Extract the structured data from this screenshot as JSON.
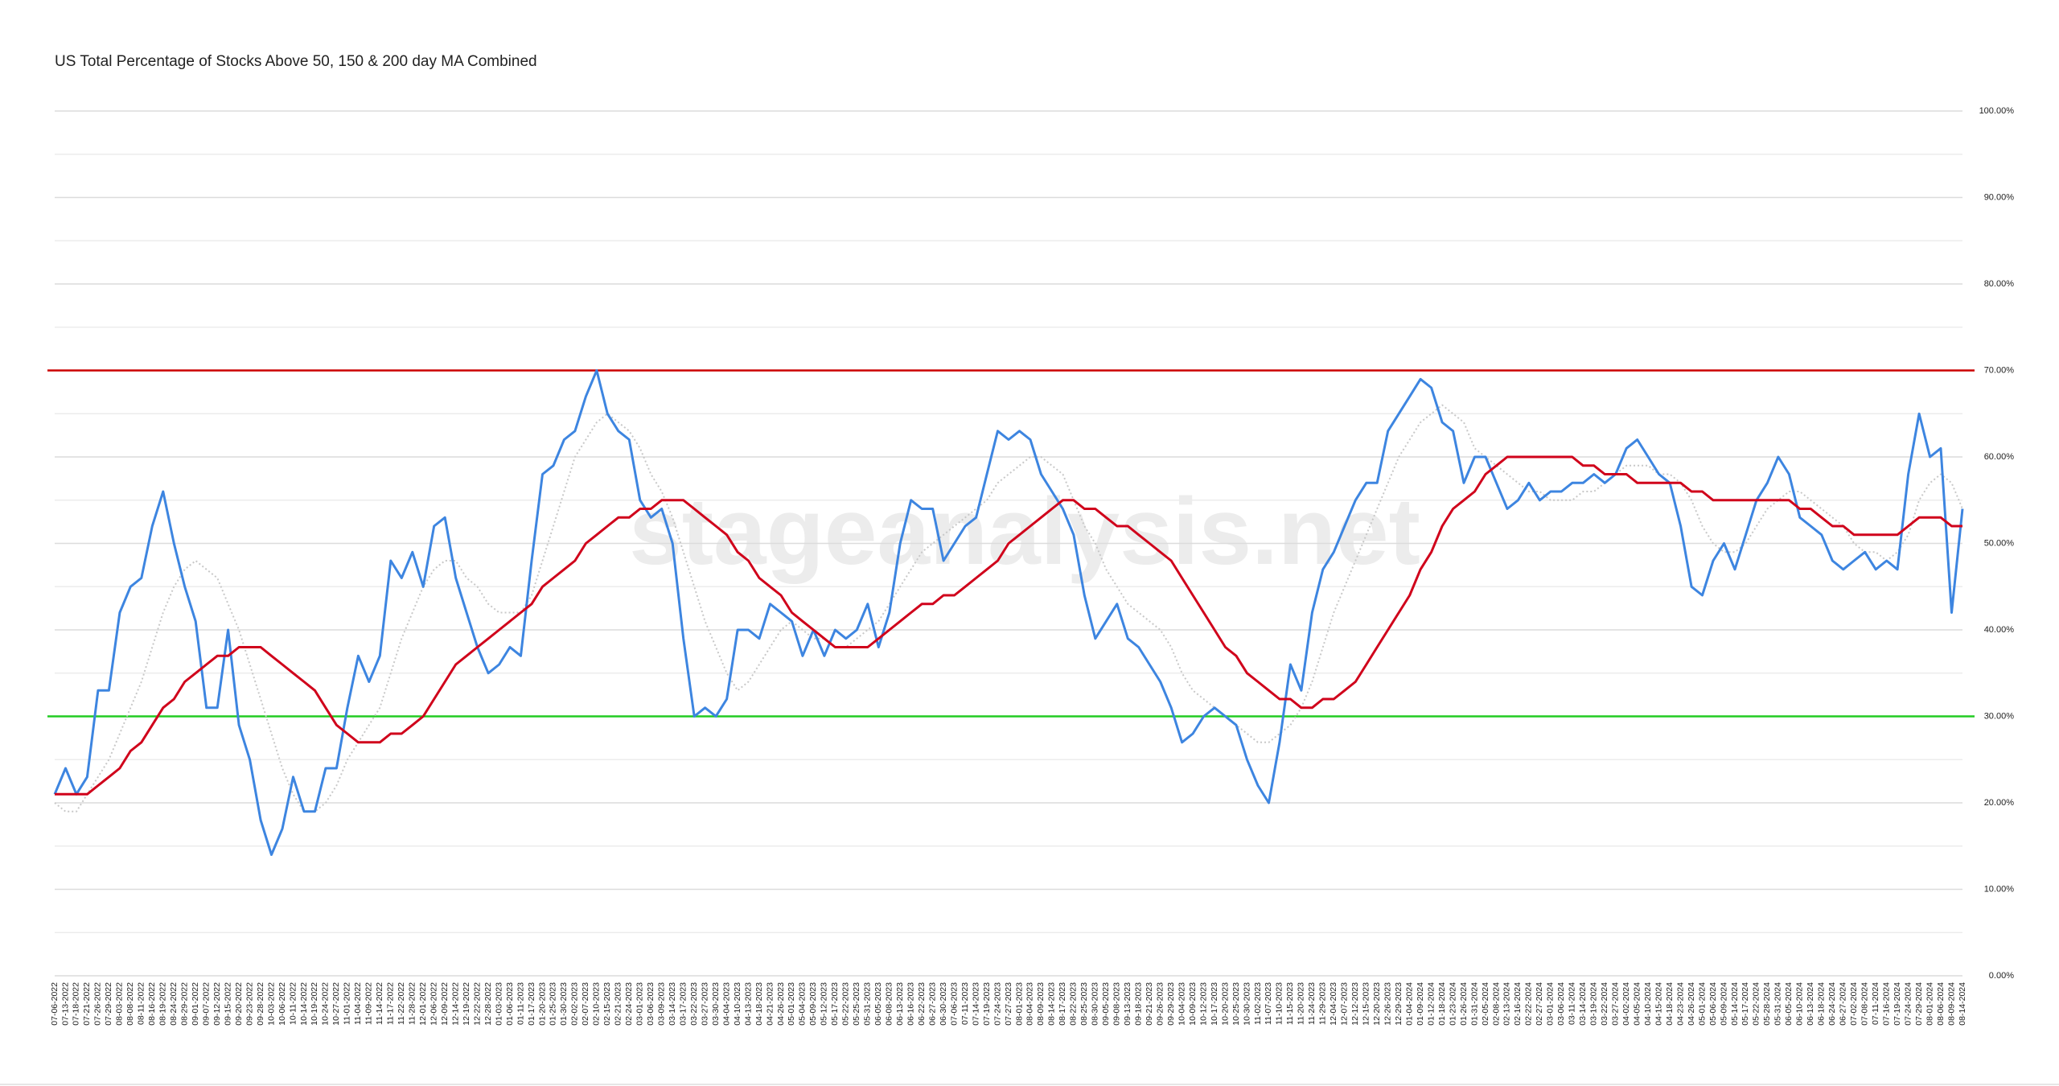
{
  "chart_data": {
    "type": "line",
    "title": "US Total Percentage of Stocks Above 50, 150 & 200 day MA Combined",
    "watermark": "stageanalysis.net",
    "categories": [
      "07-06-2022",
      "07-13-2022",
      "07-18-2022",
      "07-21-2022",
      "07-26-2022",
      "07-29-2022",
      "08-03-2022",
      "08-08-2022",
      "08-11-2022",
      "08-16-2022",
      "08-19-2022",
      "08-24-2022",
      "08-29-2022",
      "09-01-2022",
      "09-07-2022",
      "09-12-2022",
      "09-15-2022",
      "09-20-2022",
      "09-23-2022",
      "09-28-2022",
      "10-03-2022",
      "10-06-2022",
      "10-11-2022",
      "10-14-2022",
      "10-19-2022",
      "10-24-2022",
      "10-27-2022",
      "11-01-2022",
      "11-04-2022",
      "11-09-2022",
      "11-14-2022",
      "11-17-2022",
      "11-22-2022",
      "11-28-2022",
      "12-01-2022",
      "12-06-2022",
      "12-09-2022",
      "12-14-2022",
      "12-19-2022",
      "12-22-2022",
      "12-28-2022",
      "01-03-2023",
      "01-06-2023",
      "01-11-2023",
      "01-17-2023",
      "01-20-2023",
      "01-25-2023",
      "01-30-2023",
      "02-02-2023",
      "02-07-2023",
      "02-10-2023",
      "02-15-2023",
      "02-21-2023",
      "02-24-2023",
      "03-01-2023",
      "03-06-2023",
      "03-09-2023",
      "03-14-2023",
      "03-17-2023",
      "03-22-2023",
      "03-27-2023",
      "03-30-2023",
      "04-04-2023",
      "04-10-2023",
      "04-13-2023",
      "04-18-2023",
      "04-21-2023",
      "04-26-2023",
      "05-01-2023",
      "05-04-2023",
      "05-09-2023",
      "05-12-2023",
      "05-17-2023",
      "05-22-2023",
      "05-25-2023",
      "05-31-2023",
      "06-05-2023",
      "06-08-2023",
      "06-13-2023",
      "06-16-2023",
      "06-22-2023",
      "06-27-2023",
      "06-30-2023",
      "07-06-2023",
      "07-11-2023",
      "07-14-2023",
      "07-19-2023",
      "07-24-2023",
      "07-27-2023",
      "08-01-2023",
      "08-04-2023",
      "08-09-2023",
      "08-14-2023",
      "08-17-2023",
      "08-22-2023",
      "08-25-2023",
      "08-30-2023",
      "09-05-2023",
      "09-08-2023",
      "09-13-2023",
      "09-18-2023",
      "09-21-2023",
      "09-26-2023",
      "09-29-2023",
      "10-04-2023",
      "10-09-2023",
      "10-12-2023",
      "10-17-2023",
      "10-20-2023",
      "10-25-2023",
      "10-30-2023",
      "11-02-2023",
      "11-07-2023",
      "11-10-2023",
      "11-15-2023",
      "11-20-2023",
      "11-24-2023",
      "11-29-2023",
      "12-04-2023",
      "12-07-2023",
      "12-12-2023",
      "12-15-2023",
      "12-20-2023",
      "12-26-2023",
      "12-29-2023",
      "01-04-2024",
      "01-09-2024",
      "01-12-2024",
      "01-18-2024",
      "01-23-2024",
      "01-26-2024",
      "01-31-2024",
      "02-05-2024",
      "02-08-2024",
      "02-13-2024",
      "02-16-2024",
      "02-22-2024",
      "02-27-2024",
      "03-01-2024",
      "03-06-2024",
      "03-11-2024",
      "03-14-2024",
      "03-19-2024",
      "03-22-2024",
      "03-27-2024",
      "04-02-2024",
      "04-05-2024",
      "04-10-2024",
      "04-15-2024",
      "04-18-2024",
      "04-23-2024",
      "04-26-2024",
      "05-01-2024",
      "05-06-2024",
      "05-09-2024",
      "05-14-2024",
      "05-17-2024",
      "05-22-2024",
      "05-28-2024",
      "05-31-2024",
      "06-05-2024",
      "06-10-2024",
      "06-13-2024",
      "06-18-2024",
      "06-24-2024",
      "06-27-2024",
      "07-02-2024",
      "07-08-2024",
      "07-11-2024",
      "07-16-2024",
      "07-19-2024",
      "07-24-2024",
      "07-29-2024",
      "08-01-2024",
      "08-06-2024",
      "08-09-2024",
      "08-14-2024"
    ],
    "series": [
      {
        "color": "#c8c8c8",
        "style": "dotted",
        "values": [
          20,
          19,
          19,
          21,
          23,
          25,
          28,
          31,
          34,
          38,
          42,
          45,
          47,
          48,
          47,
          46,
          43,
          40,
          36,
          32,
          28,
          24,
          21,
          19,
          19,
          20,
          22,
          25,
          27,
          29,
          31,
          35,
          39,
          42,
          45,
          47,
          48,
          48,
          46,
          45,
          43,
          42,
          42,
          42,
          44,
          48,
          52,
          56,
          60,
          62,
          64,
          65,
          64,
          63,
          61,
          58,
          56,
          53,
          49,
          45,
          41,
          38,
          35,
          33,
          34,
          36,
          38,
          40,
          41,
          40,
          39,
          39,
          38,
          38,
          39,
          40,
          41,
          43,
          45,
          47,
          49,
          50,
          51,
          52,
          53,
          54,
          55,
          57,
          58,
          59,
          60,
          60,
          59,
          58,
          55,
          52,
          50,
          47,
          45,
          43,
          42,
          41,
          40,
          38,
          35,
          33,
          32,
          31,
          30,
          29,
          28,
          27,
          27,
          28,
          29,
          31,
          34,
          38,
          42,
          45,
          48,
          51,
          54,
          57,
          60,
          62,
          64,
          65,
          66,
          65,
          64,
          61,
          60,
          59,
          58,
          57,
          56,
          56,
          55,
          55,
          55,
          56,
          56,
          57,
          58,
          59,
          59,
          59,
          58,
          58,
          57,
          55,
          52,
          50,
          49,
          49,
          50,
          52,
          54,
          55,
          56,
          56,
          55,
          54,
          53,
          52,
          50,
          49,
          49,
          48,
          49,
          51,
          55,
          57,
          58,
          57,
          54
        ]
      },
      {
        "color": "#3d85e0",
        "style": "solid",
        "values": [
          21,
          24,
          21,
          23,
          33,
          33,
          42,
          45,
          46,
          52,
          56,
          50,
          45,
          41,
          31,
          31,
          40,
          29,
          25,
          18,
          14,
          17,
          23,
          19,
          19,
          24,
          24,
          31,
          37,
          34,
          37,
          48,
          46,
          49,
          45,
          52,
          53,
          46,
          42,
          38,
          35,
          36,
          38,
          37,
          48,
          58,
          59,
          62,
          63,
          67,
          70,
          65,
          63,
          62,
          55,
          53,
          54,
          50,
          39,
          30,
          31,
          30,
          32,
          40,
          40,
          39,
          43,
          42,
          41,
          37,
          40,
          37,
          40,
          39,
          40,
          43,
          38,
          42,
          50,
          55,
          54,
          54,
          48,
          50,
          52,
          53,
          58,
          63,
          62,
          63,
          62,
          58,
          56,
          54,
          51,
          44,
          39,
          41,
          43,
          39,
          38,
          36,
          34,
          31,
          27,
          28,
          30,
          31,
          30,
          29,
          25,
          22,
          20,
          27,
          36,
          33,
          42,
          47,
          49,
          52,
          55,
          57,
          57,
          63,
          65,
          67,
          69,
          68,
          64,
          63,
          57,
          60,
          60,
          57,
          54,
          55,
          57,
          55,
          56,
          56,
          57,
          57,
          58,
          57,
          58,
          61,
          62,
          60,
          58,
          57,
          52,
          45,
          44,
          48,
          50,
          47,
          51,
          55,
          57,
          60,
          58,
          53,
          52,
          51,
          48,
          47,
          48,
          49,
          47,
          48,
          47,
          58,
          65,
          60,
          61,
          42,
          54
        ]
      },
      {
        "color": "#d0021b",
        "style": "solid",
        "values": [
          21,
          21,
          21,
          21,
          22,
          23,
          24,
          26,
          27,
          29,
          31,
          32,
          34,
          35,
          36,
          37,
          37,
          38,
          38,
          38,
          37,
          36,
          35,
          34,
          33,
          31,
          29,
          28,
          27,
          27,
          27,
          28,
          28,
          29,
          30,
          32,
          34,
          36,
          37,
          38,
          39,
          40,
          41,
          42,
          43,
          45,
          46,
          47,
          48,
          50,
          51,
          52,
          53,
          53,
          54,
          54,
          55,
          55,
          55,
          54,
          53,
          52,
          51,
          49,
          48,
          46,
          45,
          44,
          42,
          41,
          40,
          39,
          38,
          38,
          38,
          38,
          39,
          40,
          41,
          42,
          43,
          43,
          44,
          44,
          45,
          46,
          47,
          48,
          50,
          51,
          52,
          53,
          54,
          55,
          55,
          54,
          54,
          53,
          52,
          52,
          51,
          50,
          49,
          48,
          46,
          44,
          42,
          40,
          38,
          37,
          35,
          34,
          33,
          32,
          32,
          31,
          31,
          32,
          32,
          33,
          34,
          36,
          38,
          40,
          42,
          44,
          47,
          49,
          52,
          54,
          55,
          56,
          58,
          59,
          60,
          60,
          60,
          60,
          60,
          60,
          60,
          59,
          59,
          58,
          58,
          58,
          57,
          57,
          57,
          57,
          57,
          56,
          56,
          55,
          55,
          55,
          55,
          55,
          55,
          55,
          55,
          54,
          54,
          53,
          52,
          52,
          51,
          51,
          51,
          51,
          51,
          52,
          53,
          53,
          53,
          52,
          52
        ]
      }
    ],
    "hlines": [
      {
        "value": 70,
        "color": "#cc0000"
      },
      {
        "value": 30,
        "color": "#22cc22"
      }
    ],
    "ylim": [
      0,
      100
    ],
    "yticks": [
      {
        "value": 0,
        "label": "0.00%"
      },
      {
        "value": 10,
        "label": "10.00%"
      },
      {
        "value": 20,
        "label": "20.00%"
      },
      {
        "value": 30,
        "label": "30.00%"
      },
      {
        "value": 40,
        "label": "40.00%"
      },
      {
        "value": 50,
        "label": "50.00%"
      },
      {
        "value": 60,
        "label": "60.00%"
      },
      {
        "value": 70,
        "label": "70.00%"
      },
      {
        "value": 80,
        "label": "80.00%"
      },
      {
        "value": 90,
        "label": "90.00%"
      },
      {
        "value": 100,
        "label": "100.00%"
      }
    ],
    "minor_yticks": [
      5,
      15,
      25,
      35,
      45,
      55,
      65,
      75,
      85,
      95
    ],
    "grid": true
  }
}
